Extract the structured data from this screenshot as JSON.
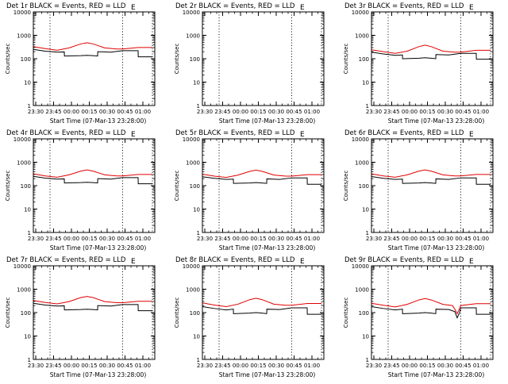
{
  "figure": {
    "x_axis_title": "Start Time (07-Mar-13 23:28:00)",
    "y_axis_title": "Counts/sec",
    "x_tick_labels": [
      "23:30",
      "23:45",
      "00:00",
      "00:15",
      "00:30",
      "00:45",
      "01:00"
    ],
    "y_tick_labels": [
      "1",
      "10",
      "100",
      "1000",
      "10000"
    ],
    "corner_mark": "E",
    "colors": {
      "events": "#000000",
      "lld": "#e00000",
      "background": "#ffffff"
    }
  },
  "chart_data": [
    {
      "type": "line",
      "title": "Det 1r BLACK = Events, RED = LLD",
      "xlabel": "Start Time (07-Mar-13 23:28:00)",
      "ylabel": "Counts/sec",
      "x_unit": "minutes after 23:28:00",
      "xlim": [
        0,
        102
      ],
      "ylim": [
        1,
        10000
      ],
      "y_scale": "log",
      "vlines": [
        14,
        75,
        100
      ],
      "series": [
        {
          "name": "Events",
          "color": "#000000",
          "x": [
            0,
            10,
            20,
            26,
            26.1,
            40,
            45,
            50,
            54,
            54.1,
            65,
            75,
            75.1,
            88,
            88.1,
            100
          ],
          "y": [
            250,
            210,
            190,
            195,
            130,
            135,
            140,
            135,
            130,
            200,
            190,
            220,
            220,
            220,
            120,
            120
          ]
        },
        {
          "name": "LLD",
          "color": "#e00000",
          "x": [
            0,
            10,
            20,
            30,
            40,
            45,
            50,
            60,
            70,
            75,
            88,
            100
          ],
          "y": [
            330,
            270,
            230,
            290,
            430,
            480,
            430,
            290,
            260,
            260,
            300,
            300
          ]
        }
      ]
    },
    {
      "type": "line",
      "title": "Det 2r BLACK = Events, RED = LLD",
      "xlabel": "Start Time (07-Mar-13 23:28:00)",
      "ylabel": "Counts/sec",
      "x_unit": "minutes after 23:28:00",
      "xlim": [
        0,
        102
      ],
      "ylim": [
        1,
        10000
      ],
      "y_scale": "log",
      "vlines": [
        14,
        75,
        100
      ],
      "series": []
    },
    {
      "type": "line",
      "title": "Det 3r BLACK = Events, RED = LLD",
      "xlabel": "Start Time (07-Mar-13 23:28:00)",
      "ylabel": "Counts/sec",
      "x_unit": "minutes after 23:28:00",
      "xlim": [
        0,
        102
      ],
      "ylim": [
        1,
        10000
      ],
      "y_scale": "log",
      "vlines": [
        14,
        75,
        100
      ],
      "series": [
        {
          "name": "Events",
          "color": "#000000",
          "x": [
            0,
            10,
            20,
            26,
            26.1,
            40,
            45,
            50,
            54,
            54.1,
            65,
            75,
            75.1,
            88,
            88.1,
            100
          ],
          "y": [
            190,
            160,
            140,
            145,
            100,
            105,
            110,
            105,
            100,
            150,
            145,
            170,
            170,
            170,
            95,
            95
          ]
        },
        {
          "name": "LLD",
          "color": "#e00000",
          "x": [
            0,
            10,
            20,
            30,
            40,
            45,
            50,
            60,
            70,
            75,
            88,
            100
          ],
          "y": [
            240,
            200,
            170,
            210,
            330,
            380,
            330,
            210,
            190,
            190,
            230,
            230
          ]
        }
      ]
    },
    {
      "type": "line",
      "title": "Det 4r BLACK = Events, RED = LLD",
      "xlabel": "Start Time (07-Mar-13 23:28:00)",
      "ylabel": "Counts/sec",
      "x_unit": "minutes after 23:28:00",
      "xlim": [
        0,
        102
      ],
      "ylim": [
        1,
        10000
      ],
      "y_scale": "log",
      "vlines": [
        14,
        75,
        100
      ],
      "series": [
        {
          "name": "Events",
          "color": "#000000",
          "x": [
            0,
            10,
            20,
            26,
            26.1,
            40,
            45,
            50,
            54,
            54.1,
            65,
            75,
            75.1,
            88,
            88.1,
            100
          ],
          "y": [
            250,
            210,
            190,
            195,
            130,
            135,
            140,
            135,
            130,
            200,
            190,
            220,
            220,
            220,
            120,
            120
          ]
        },
        {
          "name": "LLD",
          "color": "#e00000",
          "x": [
            0,
            10,
            20,
            30,
            40,
            45,
            50,
            60,
            70,
            75,
            88,
            100
          ],
          "y": [
            320,
            260,
            230,
            290,
            420,
            470,
            420,
            290,
            260,
            260,
            300,
            300
          ]
        }
      ]
    },
    {
      "type": "line",
      "title": "Det 5r BLACK = Events, RED = LLD",
      "xlabel": "Start Time (07-Mar-13 23:28:00)",
      "ylabel": "Counts/sec",
      "x_unit": "minutes after 23:28:00",
      "xlim": [
        0,
        102
      ],
      "ylim": [
        1,
        10000
      ],
      "y_scale": "log",
      "vlines": [
        14,
        75,
        100
      ],
      "series": [
        {
          "name": "Events",
          "color": "#000000",
          "x": [
            0,
            10,
            20,
            26,
            26.1,
            40,
            45,
            50,
            54,
            54.1,
            65,
            75,
            75.1,
            88,
            88.1,
            100
          ],
          "y": [
            240,
            205,
            185,
            190,
            125,
            130,
            135,
            130,
            125,
            195,
            185,
            215,
            215,
            215,
            115,
            115
          ]
        },
        {
          "name": "LLD",
          "color": "#e00000",
          "x": [
            0,
            10,
            20,
            30,
            40,
            45,
            50,
            60,
            70,
            75,
            88,
            100
          ],
          "y": [
            310,
            255,
            225,
            285,
            410,
            460,
            410,
            285,
            255,
            255,
            295,
            295
          ]
        }
      ]
    },
    {
      "type": "line",
      "title": "Det 6r BLACK = Events, RED = LLD",
      "xlabel": "Start Time (07-Mar-13 23:28:00)",
      "ylabel": "Counts/sec",
      "x_unit": "minutes after 23:28:00",
      "xlim": [
        0,
        102
      ],
      "ylim": [
        1,
        10000
      ],
      "y_scale": "log",
      "vlines": [
        14,
        75,
        100
      ],
      "series": [
        {
          "name": "Events",
          "color": "#000000",
          "x": [
            0,
            10,
            20,
            26,
            26.1,
            40,
            45,
            50,
            54,
            54.1,
            65,
            75,
            75.1,
            88,
            88.1,
            100
          ],
          "y": [
            245,
            205,
            185,
            190,
            125,
            130,
            135,
            130,
            125,
            195,
            185,
            215,
            215,
            215,
            115,
            115
          ]
        },
        {
          "name": "LLD",
          "color": "#e00000",
          "x": [
            0,
            10,
            20,
            30,
            40,
            45,
            50,
            60,
            70,
            75,
            88,
            100
          ],
          "y": [
            320,
            260,
            230,
            290,
            420,
            470,
            420,
            290,
            260,
            260,
            300,
            300
          ]
        }
      ]
    },
    {
      "type": "line",
      "title": "Det 7r BLACK = Events, RED = LLD",
      "xlabel": "Start Time (07-Mar-13 23:28:00)",
      "ylabel": "Counts/sec",
      "x_unit": "minutes after 23:28:00",
      "xlim": [
        0,
        102
      ],
      "ylim": [
        1,
        10000
      ],
      "y_scale": "log",
      "vlines": [
        14,
        75,
        100
      ],
      "series": [
        {
          "name": "Events",
          "color": "#000000",
          "x": [
            0,
            10,
            20,
            26,
            26.1,
            40,
            45,
            50,
            54,
            54.1,
            65,
            75,
            75.1,
            88,
            88.1,
            100
          ],
          "y": [
            250,
            210,
            190,
            195,
            130,
            135,
            140,
            135,
            130,
            200,
            190,
            220,
            220,
            220,
            120,
            120
          ]
        },
        {
          "name": "LLD",
          "color": "#e00000",
          "x": [
            0,
            10,
            20,
            30,
            40,
            45,
            50,
            60,
            70,
            75,
            88,
            100
          ],
          "y": [
            330,
            270,
            235,
            295,
            440,
            490,
            440,
            295,
            265,
            265,
            305,
            305
          ]
        }
      ]
    },
    {
      "type": "line",
      "title": "Det 8r BLACK = Events, RED = LLD",
      "xlabel": "Start Time (07-Mar-13 23:28:00)",
      "ylabel": "Counts/sec",
      "x_unit": "minutes after 23:28:00",
      "xlim": [
        0,
        102
      ],
      "ylim": [
        1,
        10000
      ],
      "y_scale": "log",
      "vlines": [
        14,
        75,
        100
      ],
      "series": [
        {
          "name": "Events",
          "color": "#000000",
          "x": [
            0,
            10,
            20,
            26,
            26.1,
            40,
            45,
            50,
            54,
            54.1,
            65,
            75,
            75.1,
            88,
            88.1,
            100
          ],
          "y": [
            180,
            150,
            130,
            140,
            90,
            95,
            100,
            95,
            90,
            140,
            135,
            160,
            160,
            160,
            85,
            85
          ]
        },
        {
          "name": "LLD",
          "color": "#e00000",
          "x": [
            0,
            10,
            20,
            30,
            40,
            45,
            50,
            60,
            70,
            75,
            88,
            100
          ],
          "y": [
            260,
            210,
            180,
            230,
            360,
            410,
            360,
            230,
            205,
            205,
            245,
            245
          ]
        }
      ]
    },
    {
      "type": "line",
      "title": "Det 9r BLACK = Events, RED = LLD",
      "xlabel": "Start Time (07-Mar-13 23:28:00)",
      "ylabel": "Counts/sec",
      "x_unit": "minutes after 23:28:00",
      "xlim": [
        0,
        102
      ],
      "ylim": [
        1,
        10000
      ],
      "y_scale": "log",
      "vlines": [
        14,
        75,
        100
      ],
      "series": [
        {
          "name": "Events",
          "color": "#000000",
          "x": [
            0,
            10,
            20,
            26,
            26.1,
            40,
            45,
            50,
            54,
            54.1,
            65,
            70,
            72,
            74,
            75,
            75.1,
            88,
            88.1,
            100
          ],
          "y": [
            180,
            150,
            130,
            140,
            90,
            95,
            100,
            95,
            90,
            140,
            135,
            110,
            60,
            100,
            160,
            160,
            160,
            85,
            85
          ]
        },
        {
          "name": "LLD",
          "color": "#e00000",
          "x": [
            0,
            10,
            20,
            30,
            40,
            45,
            50,
            60,
            68,
            70,
            72,
            74,
            75,
            88,
            100
          ],
          "y": [
            250,
            205,
            175,
            225,
            350,
            400,
            350,
            225,
            200,
            140,
            90,
            150,
            200,
            240,
            240
          ]
        }
      ]
    }
  ]
}
